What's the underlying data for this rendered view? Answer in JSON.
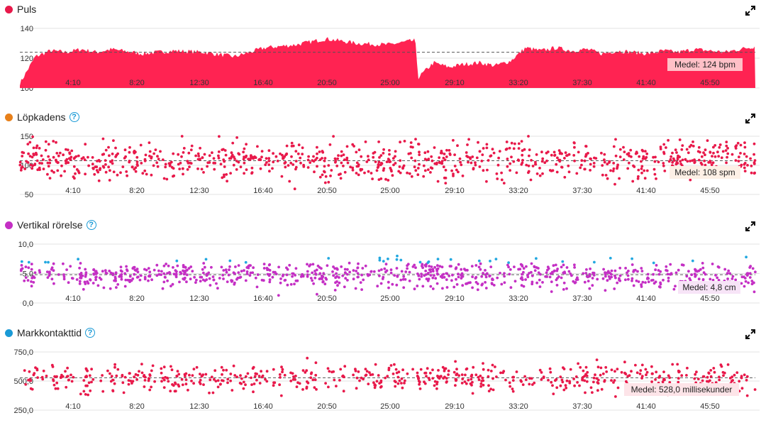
{
  "charts": [
    {
      "title": "Puls",
      "dot_color": "#e8194a",
      "has_help": false,
      "avg_label": "Medel: 124 bpm",
      "yticks": [
        "140",
        "120",
        "100"
      ],
      "xticks": [
        "4:10",
        "8:20",
        "12:30",
        "16:40",
        "20:50",
        "25:00",
        "29:10",
        "33:20",
        "37:30",
        "41:40",
        "45:50"
      ]
    },
    {
      "title": "Löpkadens",
      "dot_color": "#e8801a",
      "has_help": true,
      "avg_label": "Medel: 108 spm",
      "yticks": [
        "150",
        "100",
        "50"
      ],
      "xticks": [
        "4:10",
        "8:20",
        "12:30",
        "16:40",
        "20:50",
        "25:00",
        "29:10",
        "33:20",
        "37:30",
        "41:40",
        "45:50"
      ]
    },
    {
      "title": "Vertikal rörelse",
      "dot_color": "#c42fc4",
      "has_help": true,
      "avg_label": "Medel: 4,8 cm",
      "yticks": [
        "10,0",
        "5,0",
        "0,0"
      ],
      "xticks": [
        "4:10",
        "8:20",
        "12:30",
        "16:40",
        "20:50",
        "25:00",
        "29:10",
        "33:20",
        "37:30",
        "41:40",
        "45:50"
      ]
    },
    {
      "title": "Markkontakttid",
      "dot_color": "#1a9ad6",
      "has_help": true,
      "avg_label": "Medel: 528,0 millisekunder",
      "yticks": [
        "750,0",
        "500,0",
        "250,0"
      ],
      "xticks": [
        "4:10",
        "8:20",
        "12:30",
        "16:40",
        "20:50",
        "25:00",
        "29:10",
        "33:20",
        "37:30",
        "41:40",
        "45:50"
      ]
    }
  ],
  "chart_data": [
    {
      "type": "area",
      "color": "#ff2352",
      "x_unit": "minutes",
      "ylim": [
        100,
        145
      ],
      "average": 124,
      "x": [
        0,
        1,
        2,
        3,
        4,
        5,
        6,
        8,
        10,
        12,
        14,
        16,
        18,
        20,
        22,
        24,
        25.8,
        26,
        27,
        28,
        29,
        30,
        31,
        32,
        33,
        34,
        35,
        36,
        37,
        38,
        39,
        40,
        41,
        42,
        43,
        44,
        45,
        46,
        47,
        48
      ],
      "values": [
        103,
        121,
        125,
        124,
        126,
        124,
        126,
        123,
        125,
        124,
        121,
        127,
        129,
        133,
        130,
        129,
        132,
        107,
        117,
        114,
        116,
        117,
        115,
        118,
        127,
        125,
        127,
        125,
        126,
        123,
        125,
        124,
        123,
        125,
        124,
        126,
        125,
        124,
        126,
        128
      ]
    },
    {
      "type": "scatter",
      "color": "#e8194a",
      "ylim": [
        50,
        150
      ],
      "average": 108,
      "center": 108,
      "spread": 16
    },
    {
      "type": "scatter",
      "colors": {
        "main": "#c42fc4",
        "high": "#22a8e0",
        "top": "#4caf25",
        "peak": "#f08a1a"
      },
      "ylim": [
        0,
        10
      ],
      "average": 4.8,
      "center": 4.8,
      "spread": 1.2
    },
    {
      "type": "scatter",
      "color": "#e8194a",
      "ylim": [
        250,
        750
      ],
      "average": 528,
      "center": 528,
      "spread": 60
    }
  ]
}
